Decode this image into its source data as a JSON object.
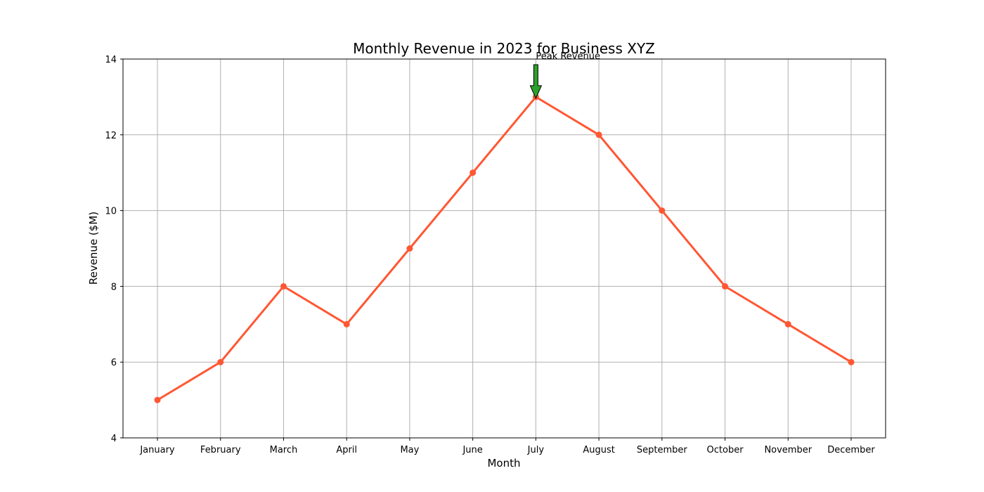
{
  "chart_data": {
    "type": "line",
    "title": "Monthly Revenue in 2023 for Business XYZ",
    "xlabel": "Month",
    "ylabel": "Revenue ($M)",
    "categories": [
      "January",
      "February",
      "March",
      "April",
      "May",
      "June",
      "July",
      "August",
      "September",
      "October",
      "November",
      "December"
    ],
    "values": [
      5,
      6,
      8,
      7,
      9,
      11,
      13,
      12,
      10,
      8,
      7,
      6
    ],
    "ylim": [
      4,
      14
    ],
    "yticks": [
      4,
      6,
      8,
      10,
      12,
      14
    ],
    "ytick_labels": [
      "4",
      "6",
      "8",
      "10",
      "12",
      "14"
    ],
    "grid": true,
    "line_color": "#FF5733",
    "grid_color": "#b0b0b0",
    "annotation": {
      "text": "Peak Revenue",
      "category": "July",
      "value": 13,
      "arrow_color": "#2CA02C"
    }
  }
}
